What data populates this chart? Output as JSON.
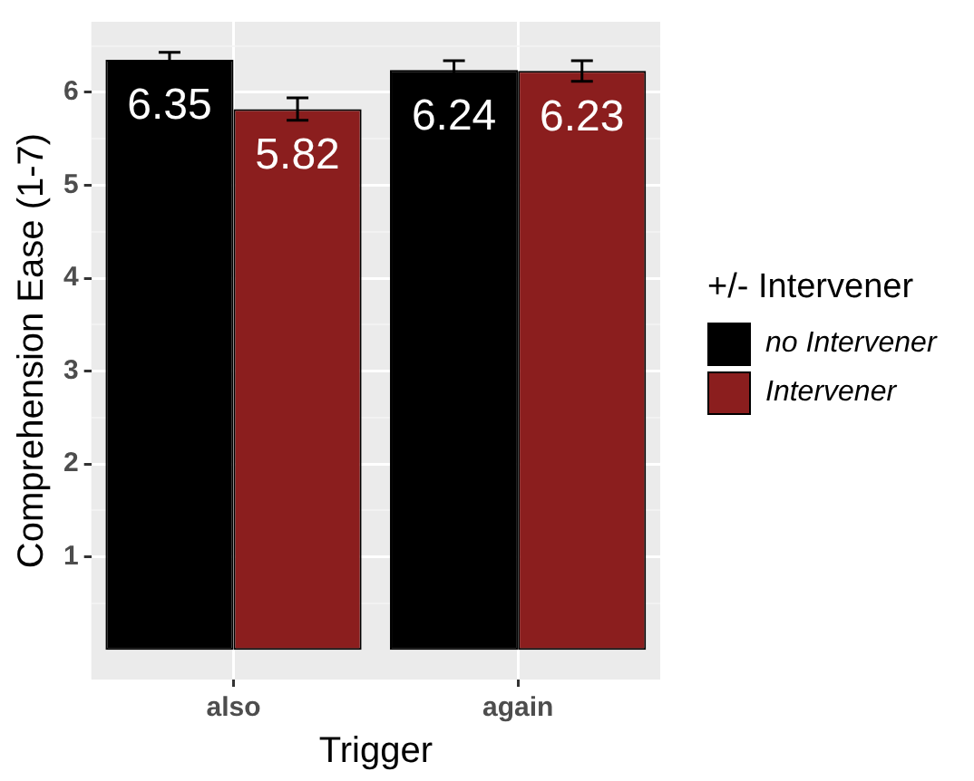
{
  "chart_data": {
    "type": "bar",
    "xlabel": "Trigger",
    "ylabel": "Comprehension Ease (1-7)",
    "legend_title": "+/- Intervener",
    "categories": [
      "also",
      "again"
    ],
    "series": [
      {
        "name": "no Intervener",
        "color": "#000000",
        "values": [
          6.35,
          6.24
        ],
        "errors": [
          0.08,
          0.1
        ]
      },
      {
        "name": "Intervener",
        "color": "#8b1e1e",
        "values": [
          5.82,
          6.23
        ],
        "errors": [
          0.12,
          0.11
        ]
      }
    ],
    "ylim": [
      -0.32,
      6.76
    ],
    "yticks": [
      {
        "value": 0.5,
        "label": null
      },
      1,
      {
        "value": 1.5,
        "label": null
      },
      2,
      {
        "value": 2.5,
        "label": null
      },
      3,
      {
        "value": 3.5,
        "label": null
      },
      4,
      {
        "value": 4.5,
        "label": null
      },
      5,
      {
        "value": 5.5,
        "label": null
      },
      6,
      {
        "value": 6.5,
        "label": null
      }
    ],
    "grid": true,
    "legend": "right",
    "data_labels": true
  }
}
